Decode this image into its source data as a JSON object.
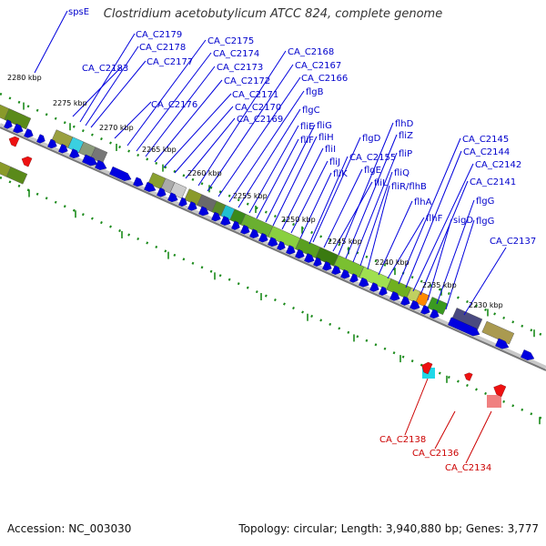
{
  "title": "Clostridium acetobutylicum ATCC 824, complete genome",
  "accession": "Accession: NC_003030",
  "topology": "Topology: circular; Length: 3,940,880 bp; Genes: 3,777",
  "colors": {
    "forward_gene": "#0000e0",
    "reverse_gene": "#ee0000",
    "dots": "#1a8a1a",
    "label_blue": "#0000cc",
    "label_red": "#cc0000"
  },
  "kbp_labels": [
    "2280 kbp",
    "2275 kbp",
    "2270 kbp",
    "2265 kbp",
    "2260 kbp",
    "2255 kbp",
    "2250 kbp",
    "2245 kbp",
    "2240 kbp",
    "2235 kbp",
    "2230 kbp"
  ],
  "gene_labels_top": [
    "spsE",
    "CA_C2179",
    "CA_C2178",
    "CA_C2183",
    "CA_C2177",
    "CA_C2176",
    "CA_C2175",
    "CA_C2174",
    "CA_C2173",
    "CA_C2172",
    "CA_C2171",
    "CA_C2170",
    "CA_C2169",
    "CA_C2168",
    "CA_C2167",
    "CA_C2166",
    "flgB",
    "flgC",
    "fliE",
    "fliF",
    "fliG",
    "fliH",
    "fliI",
    "fliJ",
    "fliK",
    "flgD",
    "flgE",
    "CA_C2155",
    "fliL",
    "flhD",
    "fliZ",
    "fliP",
    "fliQ",
    "fliR/flhB",
    "flhA",
    "flhF",
    "CA_C2145",
    "CA_C2144",
    "CA_C2142",
    "CA_C2141",
    "sigD",
    "flgG",
    "flgG",
    "CA_C2137"
  ],
  "gene_labels_bottom": [
    "CA_C2138",
    "CA_C2136",
    "CA_C2134"
  ]
}
